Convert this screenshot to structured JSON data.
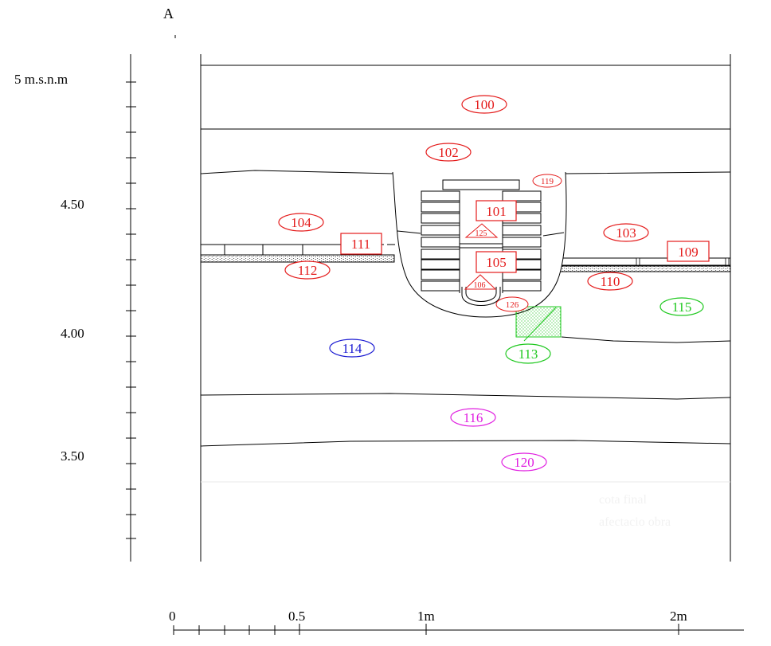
{
  "section_label": "A",
  "vertical_scale": {
    "unit_label": "5 m.s.n.m",
    "labels": [
      "4.50",
      "4.00",
      "3.50"
    ]
  },
  "horizontal_scale": {
    "labels": [
      "0",
      "0.5",
      "1m",
      "2m"
    ]
  },
  "colors": {
    "red": "#e41a1a",
    "green": "#1ec81e",
    "blue": "#1a1ad2",
    "magenta": "#e01ee0",
    "line": "#000000"
  },
  "units": {
    "u100": "100",
    "u102": "102",
    "u104": "104",
    "u103": "103",
    "u112": "112",
    "u110": "110",
    "u115": "115",
    "u114": "114",
    "u113": "113",
    "u116": "116",
    "u120": "120",
    "u119": "119",
    "u126": "126",
    "u125": "125",
    "u106": "106",
    "u101": "101",
    "u105": "105",
    "u111": "111",
    "u109": "109"
  },
  "note": {
    "line1": "cota final",
    "line2": "afectacio obra"
  }
}
